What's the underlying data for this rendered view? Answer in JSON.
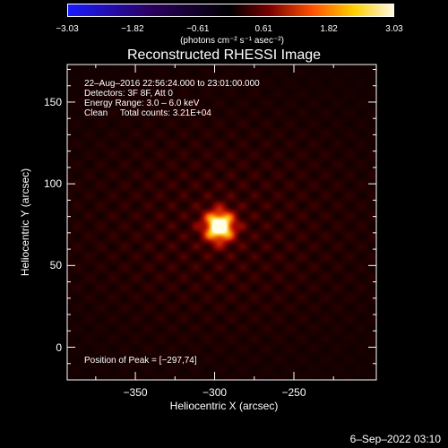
{
  "chart_data": {
    "type": "heatmap",
    "title": "Reconstructed RHESSI Image",
    "xlabel": "Heliocentric X (arcsec)",
    "ylabel": "Heliocentric Y (arcsec)",
    "xlim": [
      -393,
      -198
    ],
    "ylim": [
      -20,
      173
    ],
    "x_ticks": [
      {
        "value": -350,
        "label": "−350"
      },
      {
        "value": -300,
        "label": "−300"
      },
      {
        "value": -250,
        "label": "−250"
      }
    ],
    "y_ticks": [
      {
        "value": 0,
        "label": "0"
      },
      {
        "value": 50,
        "label": "50"
      },
      {
        "value": 100,
        "label": "100"
      },
      {
        "value": 150,
        "label": "150"
      }
    ],
    "colorbar": {
      "ticks": [
        {
          "value": -3.03,
          "label": "−3.03"
        },
        {
          "value": -1.82,
          "label": "−1.82"
        },
        {
          "value": -0.61,
          "label": "−0.61"
        },
        {
          "value": 0.61,
          "label": "0.61"
        },
        {
          "value": 1.82,
          "label": "1.82"
        },
        {
          "value": 3.03,
          "label": "3.03"
        }
      ],
      "range": [
        -3.03,
        3.03
      ],
      "units": "(photons cm⁻² s⁻¹ asec⁻²)"
    },
    "info_lines": [
      "22–Aug–2016 22:56:24.000 to 23:01:00.000",
      "Detectors: 3F 8F, Att 0",
      "Energy Range: 3.0 – 6.0 keV",
      "Clean     Total counts: 3.21E+04"
    ],
    "peak": {
      "x": -297,
      "y": 74,
      "label": "Position of Peak = [−297,74]"
    },
    "source_peak_value": 3.03
  },
  "timestamp": "6–Sep–2022 03:10",
  "colors": {
    "background": "#000000",
    "axis": "#ffffff"
  }
}
